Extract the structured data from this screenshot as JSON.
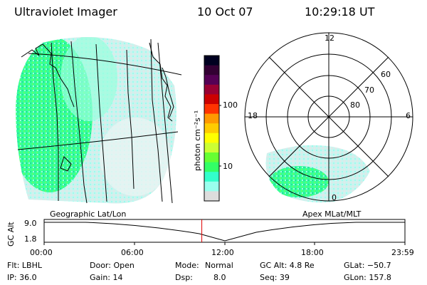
{
  "header": {
    "instrument": "Ultraviolet Imager",
    "date": "10 Oct 07",
    "time": "10:29:18 UT"
  },
  "colorbar": {
    "unit_label": "photon cm⁻²s⁻¹",
    "ticks": [
      "100",
      "10"
    ],
    "colors": [
      "#000020",
      "#330033",
      "#550055",
      "#990033",
      "#cc0000",
      "#ff3300",
      "#ff9900",
      "#ffcc00",
      "#ffff00",
      "#ccff33",
      "#66ff33",
      "#33ff66",
      "#33ffcc",
      "#99ffee",
      "#dddddd"
    ]
  },
  "polar": {
    "mlt_labels": {
      "top": "12",
      "left": "18",
      "right": "6",
      "bottom": "0"
    },
    "lat_labels": [
      "60",
      "70",
      "80"
    ]
  },
  "timeline": {
    "left_label": "Geographic Lat/Lon",
    "right_label": "Apex MLat/MLT",
    "axis_label": "GC Alt",
    "y_ticks": [
      "9.0",
      "1.8"
    ],
    "x_ticks": [
      "00:00",
      "06:00",
      "12:00",
      "18:00",
      "23:59"
    ],
    "current_time_fraction": 0.437
  },
  "info": {
    "filter": "Flt: LBHL",
    "ip": "IP: 36.0",
    "door": "Door: Open",
    "gain": "Gain: 14",
    "mode_label": "Mode:",
    "mode_value": "Normal",
    "dsp_label": "Dsp:",
    "dsp_value": "8.0",
    "gc_alt": "GC Alt: 4.8 Re",
    "seq": "Seq: 39",
    "glat": "GLat: −50.7",
    "glon": "GLon: 157.8"
  }
}
